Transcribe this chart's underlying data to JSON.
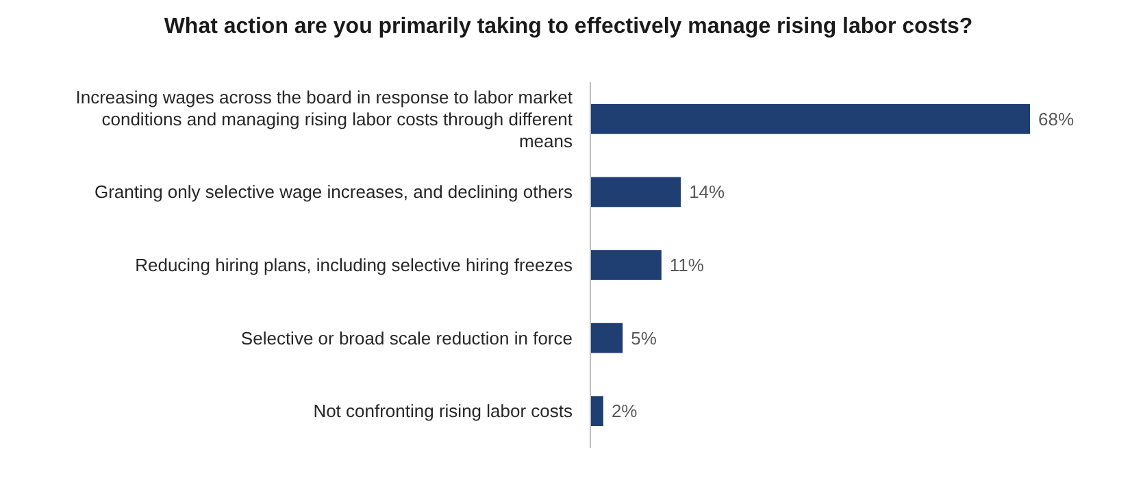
{
  "chart_data": {
    "type": "bar",
    "orientation": "horizontal",
    "title": "What action are you primarily taking to effectively manage rising labor costs?",
    "categories": [
      "Increasing wages across the board in response to labor market conditions and managing rising labor costs through different means",
      "Granting only selective wage increases, and declining others",
      "Reducing hiring plans, including selective hiring freezes",
      "Selective or broad scale reduction in force",
      "Not confronting rising labor costs"
    ],
    "values": [
      68,
      14,
      11,
      5,
      2
    ],
    "value_labels": [
      "68%",
      "14%",
      "11%",
      "5%",
      "2%"
    ],
    "color": "#1f3f73",
    "xlim": [
      0,
      68
    ],
    "tick_labels": "y"
  }
}
